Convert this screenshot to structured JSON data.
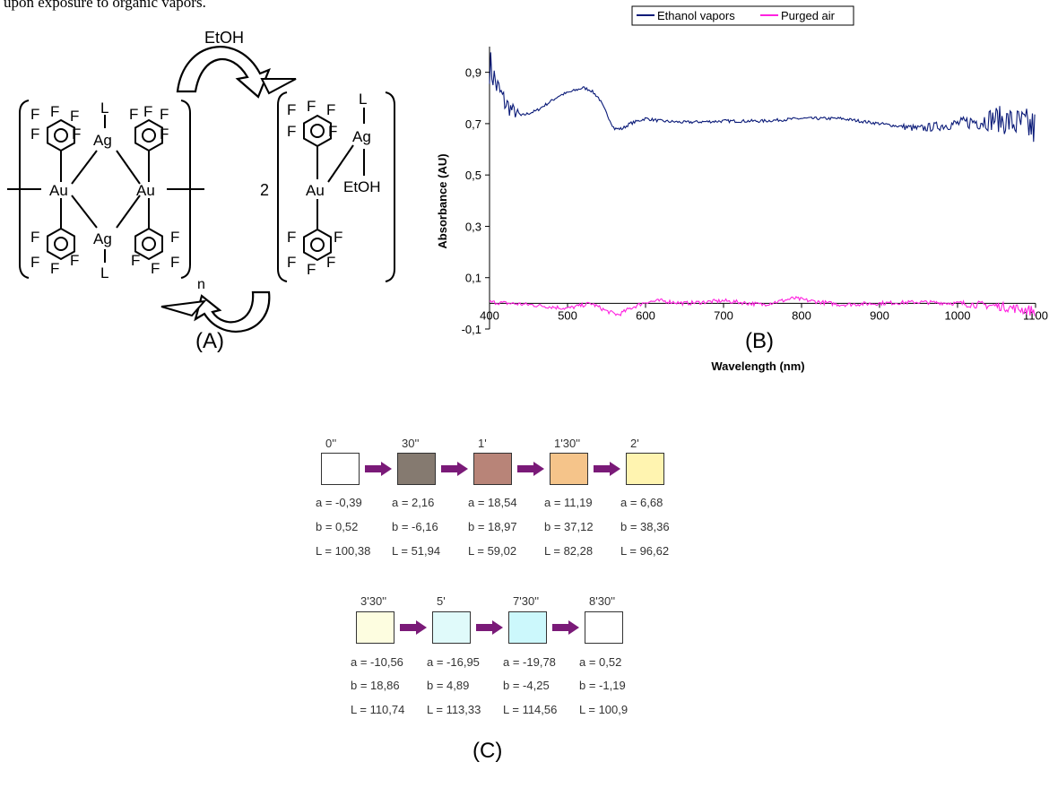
{
  "top_caption": "upon exposure to organic vapors.",
  "panels": {
    "a": "(A)",
    "b": "(B)",
    "c": "(C)"
  },
  "scheme": {
    "top_arrow_label": "EtOH",
    "bottom_arrow_label": "n",
    "coefficient": "2",
    "left_complex": {
      "metals": [
        "Au",
        "Au",
        "Ag",
        "Ag"
      ],
      "ligands": [
        "L",
        "L"
      ],
      "fluorine_label": "F"
    },
    "right_complex": {
      "metals": [
        "Au",
        "Ag"
      ],
      "ligands": [
        "L",
        "EtOH"
      ],
      "fluorine_label": "F"
    }
  },
  "chart_data": {
    "type": "line",
    "xlabel": "Wavelength (nm)",
    "ylabel": "Absorbance (AU)",
    "xlim": [
      400,
      1100
    ],
    "ylim": [
      -0.1,
      1.0
    ],
    "x_ticks": [
      "400",
      "500",
      "600",
      "700",
      "800",
      "900",
      "1000",
      "1100"
    ],
    "y_ticks": [
      "-0,1",
      "0,1",
      "0,3",
      "0,5",
      "0,7",
      "0,9"
    ],
    "legend_position": "top-right",
    "series": [
      {
        "name": "Ethanol vapors",
        "color": "#0a1a78",
        "x": [
          400,
          410,
          420,
          430,
          440,
          450,
          460,
          470,
          480,
          490,
          500,
          510,
          520,
          530,
          540,
          550,
          560,
          570,
          580,
          590,
          600,
          620,
          650,
          700,
          750,
          800,
          850,
          900,
          950,
          1000,
          1050,
          1100
        ],
        "y": [
          0.93,
          0.84,
          0.78,
          0.75,
          0.73,
          0.74,
          0.75,
          0.77,
          0.79,
          0.81,
          0.82,
          0.83,
          0.84,
          0.83,
          0.8,
          0.74,
          0.68,
          0.68,
          0.7,
          0.71,
          0.72,
          0.71,
          0.705,
          0.71,
          0.71,
          0.72,
          0.72,
          0.7,
          0.68,
          0.7,
          0.72,
          0.68
        ]
      },
      {
        "name": "Purged air",
        "color": "#ff22e0",
        "x": [
          400,
          450,
          500,
          530,
          550,
          565,
          580,
          600,
          620,
          650,
          700,
          750,
          775,
          790,
          810,
          850,
          900,
          950,
          1000,
          1050,
          1100
        ],
        "y": [
          0.005,
          -0.005,
          -0.02,
          0.0,
          -0.03,
          -0.045,
          -0.02,
          0.005,
          0.01,
          0.0,
          0.01,
          -0.005,
          0.01,
          0.02,
          0.01,
          -0.005,
          0.0,
          0.005,
          0.0,
          -0.01,
          -0.03
        ]
      }
    ]
  },
  "color_sequence": {
    "row1": [
      {
        "time": "0''",
        "color": "#ffffff",
        "a": "a = -0,39",
        "b": "b = 0,52",
        "L": "L = 100,38"
      },
      {
        "time": "30''",
        "color": "#857a70",
        "a": "a = 2,16",
        "b": "b = -6,16",
        "L": "L = 51,94"
      },
      {
        "time": "1'",
        "color": "#b88478",
        "a": "a = 18,54",
        "b": "b = 18,97",
        "L": "L = 59,02"
      },
      {
        "time": "1'30''",
        "color": "#f5c48a",
        "a": "a = 11,19",
        "b": "b = 37,12",
        "L": "L = 82,28"
      },
      {
        "time": "2'",
        "color": "#fff4b0",
        "a": "a = 6,68",
        "b": "b = 38,36",
        "L": "L = 96,62"
      }
    ],
    "row2": [
      {
        "time": "3'30''",
        "color": "#fdfde0",
        "a": "a = -10,56",
        "b": "b = 18,86",
        "L": "L = 110,74"
      },
      {
        "time": "5'",
        "color": "#e0fafa",
        "a": "a = -16,95",
        "b": "b = 4,89",
        "L": "L = 113,33"
      },
      {
        "time": "7'30''",
        "color": "#ccf8fc",
        "a": "a = -19,78",
        "b": "b = -4,25",
        "L": "L = 114,56"
      },
      {
        "time": "8'30''",
        "color": "#ffffff",
        "a": "a = 0,52",
        "b": "b = -1,19",
        "L": "L = 100,9"
      }
    ],
    "arrow_color": "#7a1a78"
  }
}
